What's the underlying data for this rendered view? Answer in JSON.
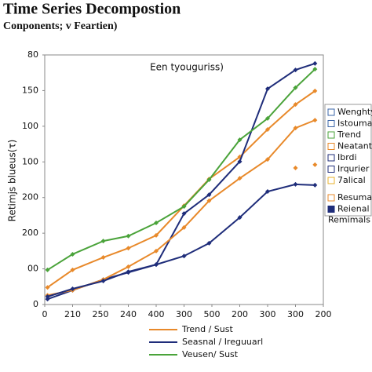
{
  "chart_data": {
    "type": "line",
    "title": "Time Series Decompostion",
    "subtitle": "Conponents; v Feartien)",
    "annotation": "Een tyouguriss)",
    "ylabel": "Retimjs blueus(τ)",
    "xlim": [
      0,
      10
    ],
    "ylim": [
      0,
      7
    ],
    "xticks": [
      0,
      {
        "value": 1,
        "label": "210"
      },
      {
        "value": 2,
        "label": "250"
      },
      {
        "value": 3,
        "label": "240"
      },
      {
        "value": 4,
        "label": "400"
      },
      {
        "value": 5,
        "label": "300"
      },
      {
        "value": 6,
        "label": "500"
      },
      {
        "value": 7,
        "label": "200"
      },
      {
        "value": 8,
        "label": "300"
      },
      {
        "value": 9,
        "label": "300"
      },
      {
        "value": 10,
        "label": "200"
      }
    ],
    "yticks": [
      {
        "value": 0,
        "label": "0"
      },
      {
        "value": 1,
        "label": "00"
      },
      {
        "value": 2,
        "label": "200"
      },
      {
        "value": 3,
        "label": "200"
      },
      {
        "value": 4,
        "label": "100"
      },
      {
        "value": 5,
        "label": "100"
      },
      {
        "value": 6,
        "label": "150"
      },
      {
        "value": 7,
        "label": "80"
      }
    ],
    "grid": false,
    "series": [
      {
        "name": "Trend / Sust",
        "color": "#e8892a",
        "x": [
          0.1,
          1,
          2.1,
          3,
          4,
          5,
          5.9,
          7,
          8,
          9,
          9.7
        ],
        "values": [
          0.48,
          0.97,
          1.32,
          1.58,
          1.94,
          2.77,
          3.52,
          4.14,
          4.91,
          5.61,
          5.99
        ]
      },
      {
        "name": "Seasnal / Ireguuarl",
        "color": "#1f2d7a",
        "x": [
          0.1,
          1,
          2.1,
          3,
          4,
          5,
          5.9,
          7,
          8,
          9,
          9.7
        ],
        "values": [
          0.15,
          0.4,
          0.7,
          0.9,
          1.12,
          2.55,
          3.08,
          4.01,
          6.05,
          6.58,
          6.76
        ]
      },
      {
        "name": "Veusen/ Sust",
        "color": "#4aa33a",
        "x": [
          0.1,
          1,
          2.1,
          3,
          4,
          5,
          5.9,
          7,
          8,
          9,
          9.7
        ],
        "values": [
          0.97,
          1.41,
          1.78,
          1.92,
          2.29,
          2.75,
          3.5,
          4.62,
          5.22,
          6.08,
          6.6
        ]
      },
      {
        "color": "#e8892a",
        "x": [
          0.1,
          1,
          2.1,
          3,
          4,
          5,
          5.9,
          7,
          8,
          9,
          9.7
        ],
        "values": [
          0.26,
          0.4,
          0.7,
          1.06,
          1.5,
          2.16,
          2.91,
          3.54,
          4.07,
          4.95,
          5.17
        ]
      },
      {
        "color": "#1f2d7a",
        "x": [
          0.1,
          1,
          2.1,
          3,
          4,
          5,
          5.9,
          7,
          8,
          9,
          9.7
        ],
        "values": [
          0.22,
          0.44,
          0.66,
          0.92,
          1.12,
          1.36,
          1.72,
          2.44,
          3.17,
          3.37,
          3.35
        ]
      },
      {
        "color": "#e8892a",
        "line": false,
        "x": [
          9,
          9.7
        ],
        "values": [
          3.83,
          3.92
        ]
      }
    ],
    "side_legend": [
      {
        "label": "Wenghtyo",
        "color": "#3a64a8",
        "filled": false
      },
      {
        "label": "Istoumal",
        "color": "#3a64a8",
        "filled": false
      },
      {
        "label": "Trend",
        "color": "#4aa33a",
        "filled": false
      },
      {
        "label": "Neatantly",
        "color": "#e8892a",
        "filled": false
      },
      {
        "label": "Ibrdi",
        "color": "#1f2d7a",
        "filled": false
      },
      {
        "label": "Irqurier",
        "color": "#1f2d7a",
        "filled": false
      },
      {
        "label": "7alical",
        "color": "#e8b02a",
        "filled": false
      },
      {
        "label": "Resumal",
        "color": "#e8892a",
        "filled": false
      },
      {
        "label": "Reienal Remimals",
        "color": "#1f2d7a",
        "filled": true
      }
    ]
  }
}
